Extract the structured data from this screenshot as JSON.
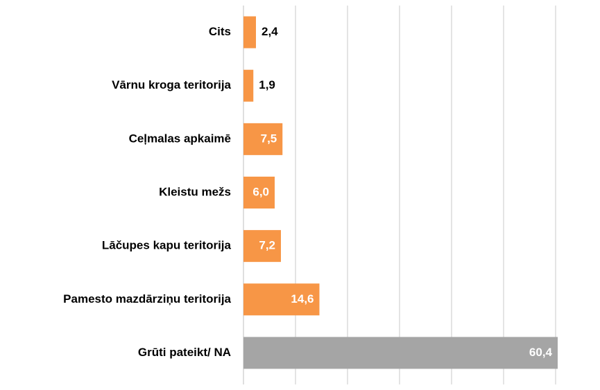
{
  "chart_data": {
    "type": "bar",
    "orientation": "horizontal",
    "categories": [
      "Cits",
      "Vārnu kroga teritorija",
      "Ceļmalas apkaimē",
      "Kleistu mežs",
      "Lāčupes kapu teritorija",
      "Pamesto mazdārziņu teritorija",
      "Grūti pateikt/ NA"
    ],
    "values": [
      2.4,
      1.9,
      7.5,
      6.0,
      7.2,
      14.6,
      60.4
    ],
    "value_labels": [
      "2,4",
      "1,9",
      "7,5",
      "6,0",
      "7,2",
      "14,6",
      "60,4"
    ],
    "colors": [
      "#f79646",
      "#f79646",
      "#f79646",
      "#f79646",
      "#f79646",
      "#f79646",
      "#a5a5a5"
    ],
    "xlim": [
      0,
      60
    ],
    "xticks": [
      0,
      10,
      20,
      30,
      40,
      50,
      60
    ],
    "grid": true
  }
}
